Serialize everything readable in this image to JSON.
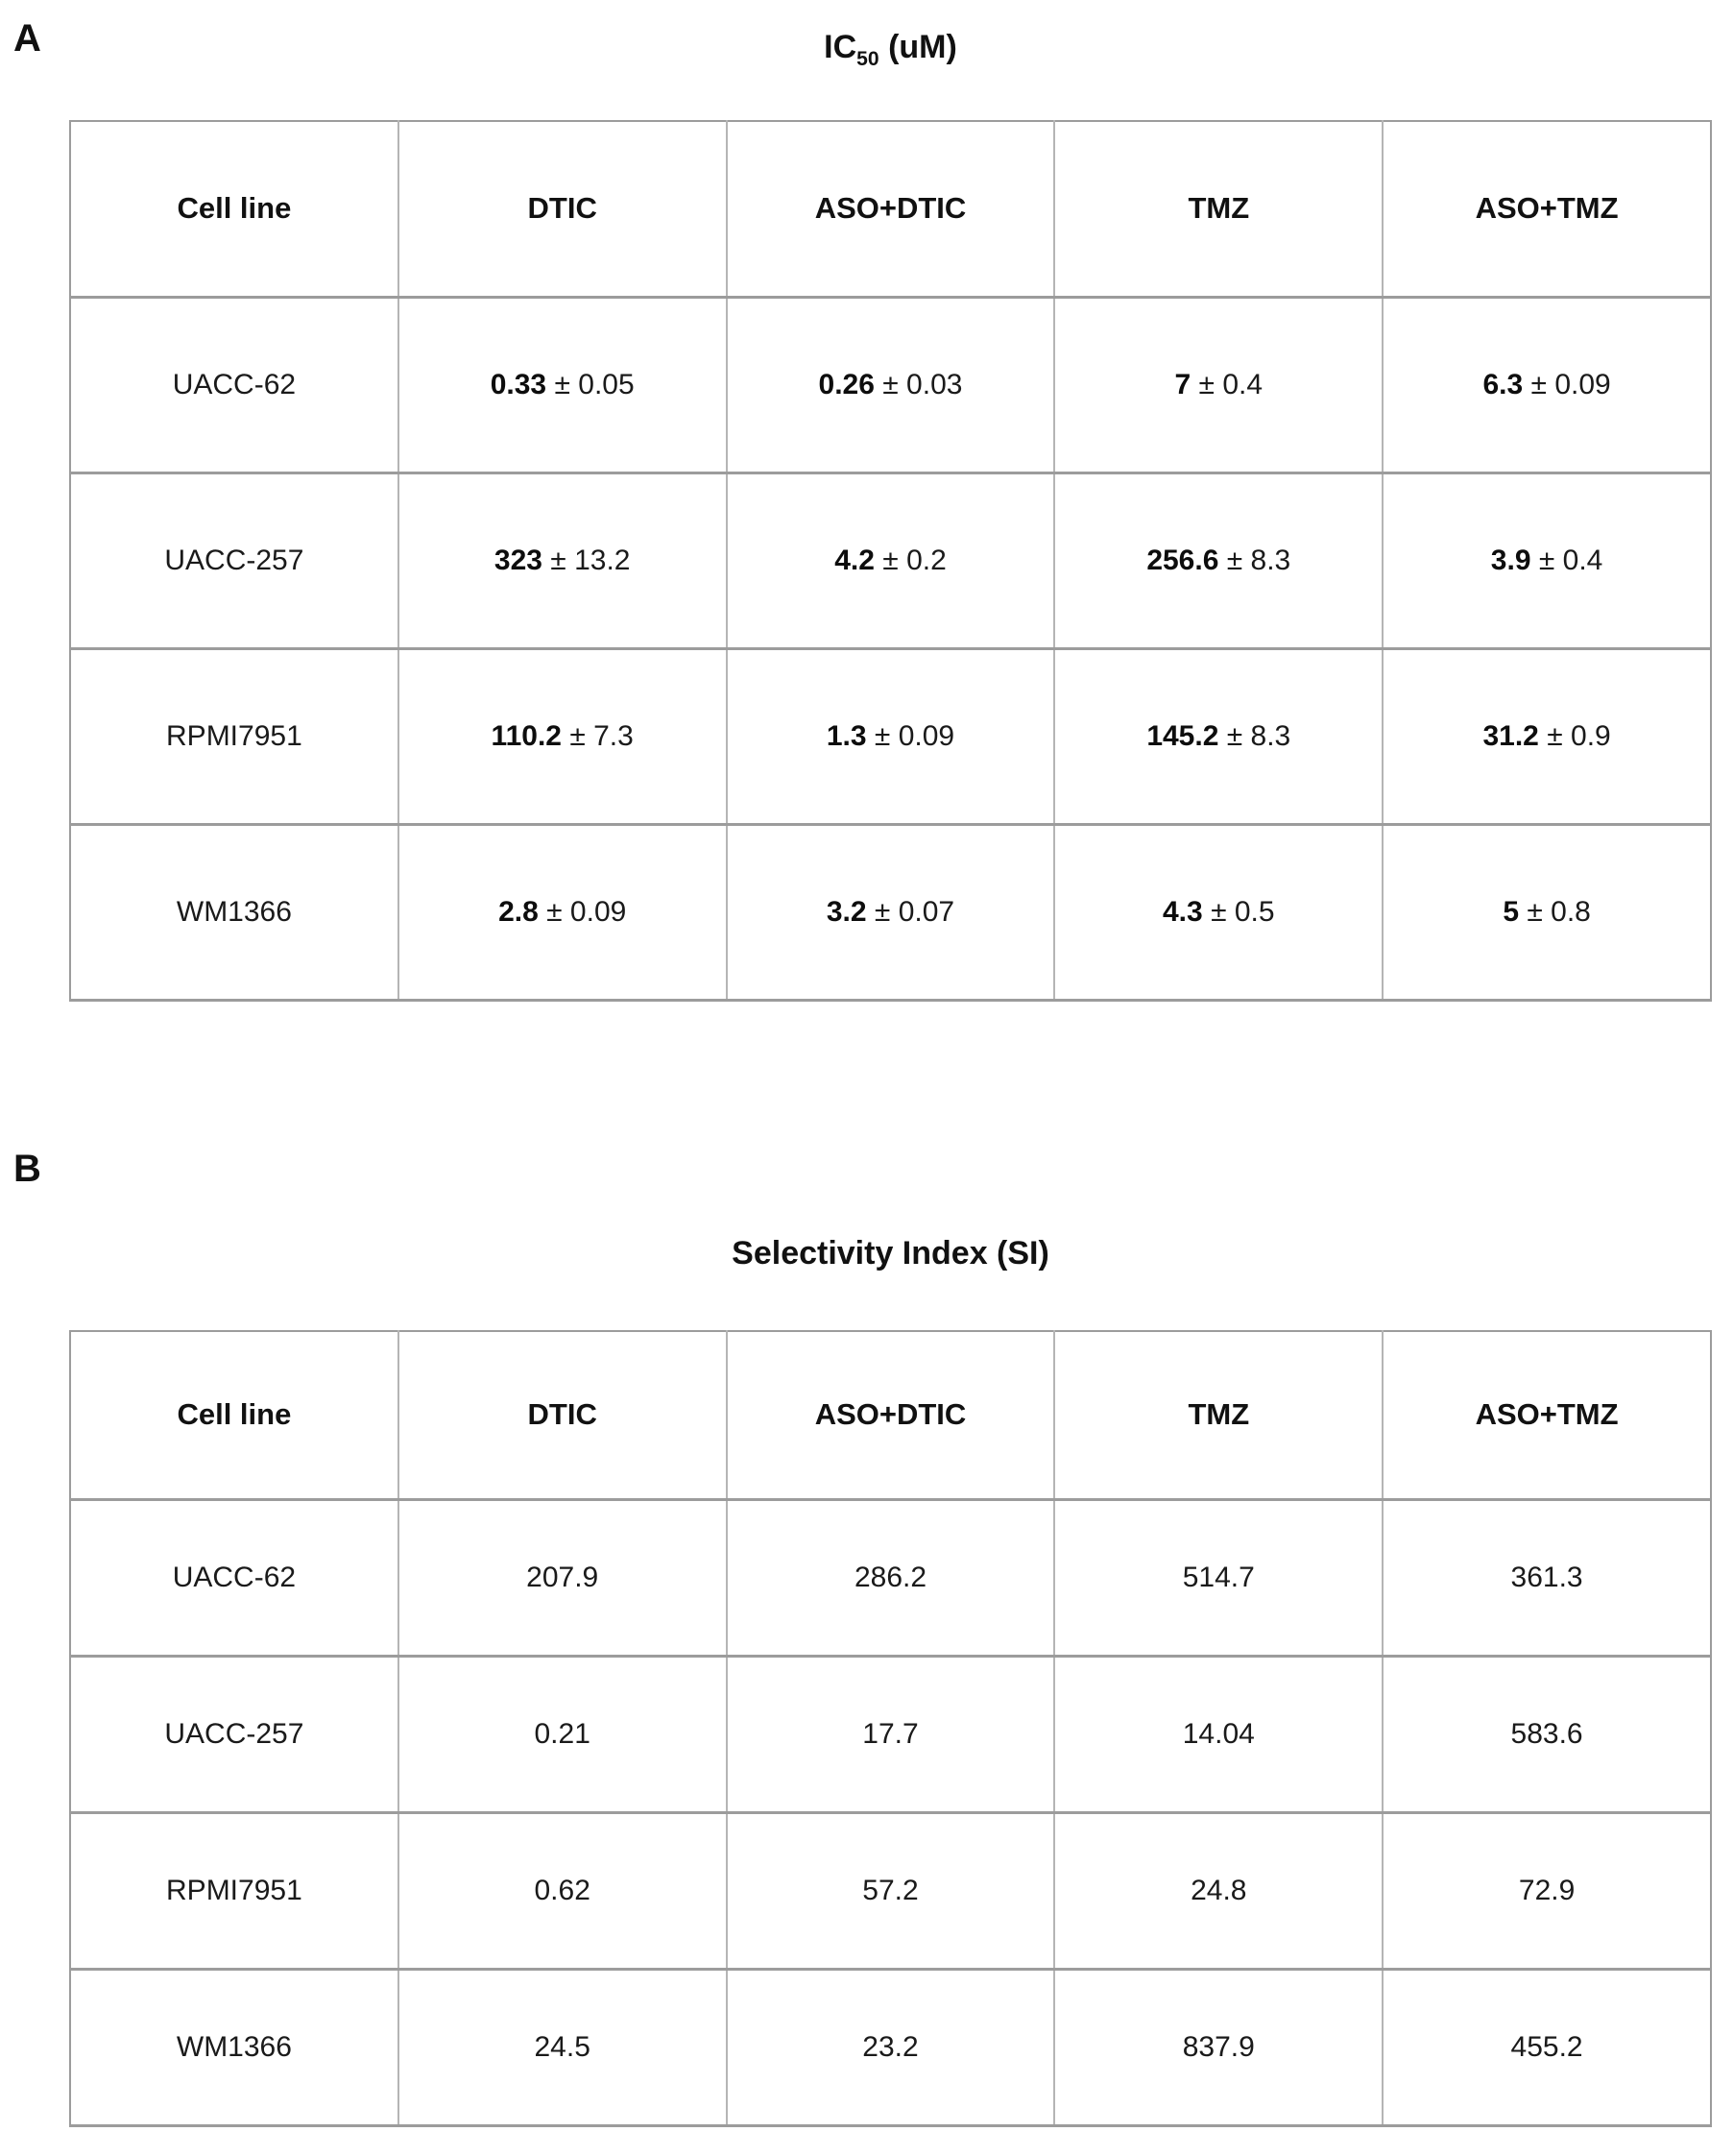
{
  "panelA": {
    "label": "A",
    "title": {
      "prefix": "IC",
      "sub": "50",
      "suffix": " (uM)"
    },
    "columns": [
      "Cell line",
      "DTIC",
      "ASO+DTIC",
      "TMZ",
      "ASO+TMZ"
    ],
    "rows": [
      {
        "cell_line": "UACC-62",
        "values": [
          {
            "mean": "0.33",
            "err": "± 0.05"
          },
          {
            "mean": "0.26",
            "err": "± 0.03"
          },
          {
            "mean": "7",
            "err": "± 0.4"
          },
          {
            "mean": "6.3",
            "err": "± 0.09"
          }
        ]
      },
      {
        "cell_line": "UACC-257",
        "values": [
          {
            "mean": "323",
            "err": "± 13.2"
          },
          {
            "mean": "4.2",
            "err": "± 0.2"
          },
          {
            "mean": "256.6",
            "err": "± 8.3"
          },
          {
            "mean": "3.9",
            "err": "± 0.4"
          }
        ]
      },
      {
        "cell_line": "RPMI7951",
        "values": [
          {
            "mean": "110.2",
            "err": "± 7.3"
          },
          {
            "mean": "1.3",
            "err": "± 0.09"
          },
          {
            "mean": "145.2",
            "err": "± 8.3"
          },
          {
            "mean": "31.2",
            "err": "± 0.9"
          }
        ]
      },
      {
        "cell_line": "WM1366",
        "values": [
          {
            "mean": "2.8",
            "err": "± 0.09"
          },
          {
            "mean": "3.2",
            "err": "± 0.07"
          },
          {
            "mean": "4.3",
            "err": "± 0.5"
          },
          {
            "mean": "5",
            "err": "± 0.8"
          }
        ]
      }
    ]
  },
  "panelB": {
    "label": "B",
    "title": "Selectivity Index (SI)",
    "columns": [
      "Cell line",
      "DTIC",
      "ASO+DTIC",
      "TMZ",
      "ASO+TMZ"
    ],
    "rows": [
      {
        "cell_line": "UACC-62",
        "values": [
          "207.9",
          "286.2",
          "514.7",
          "361.3"
        ]
      },
      {
        "cell_line": "UACC-257",
        "values": [
          "0.21",
          "17.7",
          "14.04",
          "583.6"
        ]
      },
      {
        "cell_line": "RPMI7951",
        "values": [
          "0.62",
          "57.2",
          "24.8",
          "72.9"
        ]
      },
      {
        "cell_line": "WM1366",
        "values": [
          "24.5",
          "23.2",
          "837.9",
          "455.2"
        ]
      }
    ]
  }
}
